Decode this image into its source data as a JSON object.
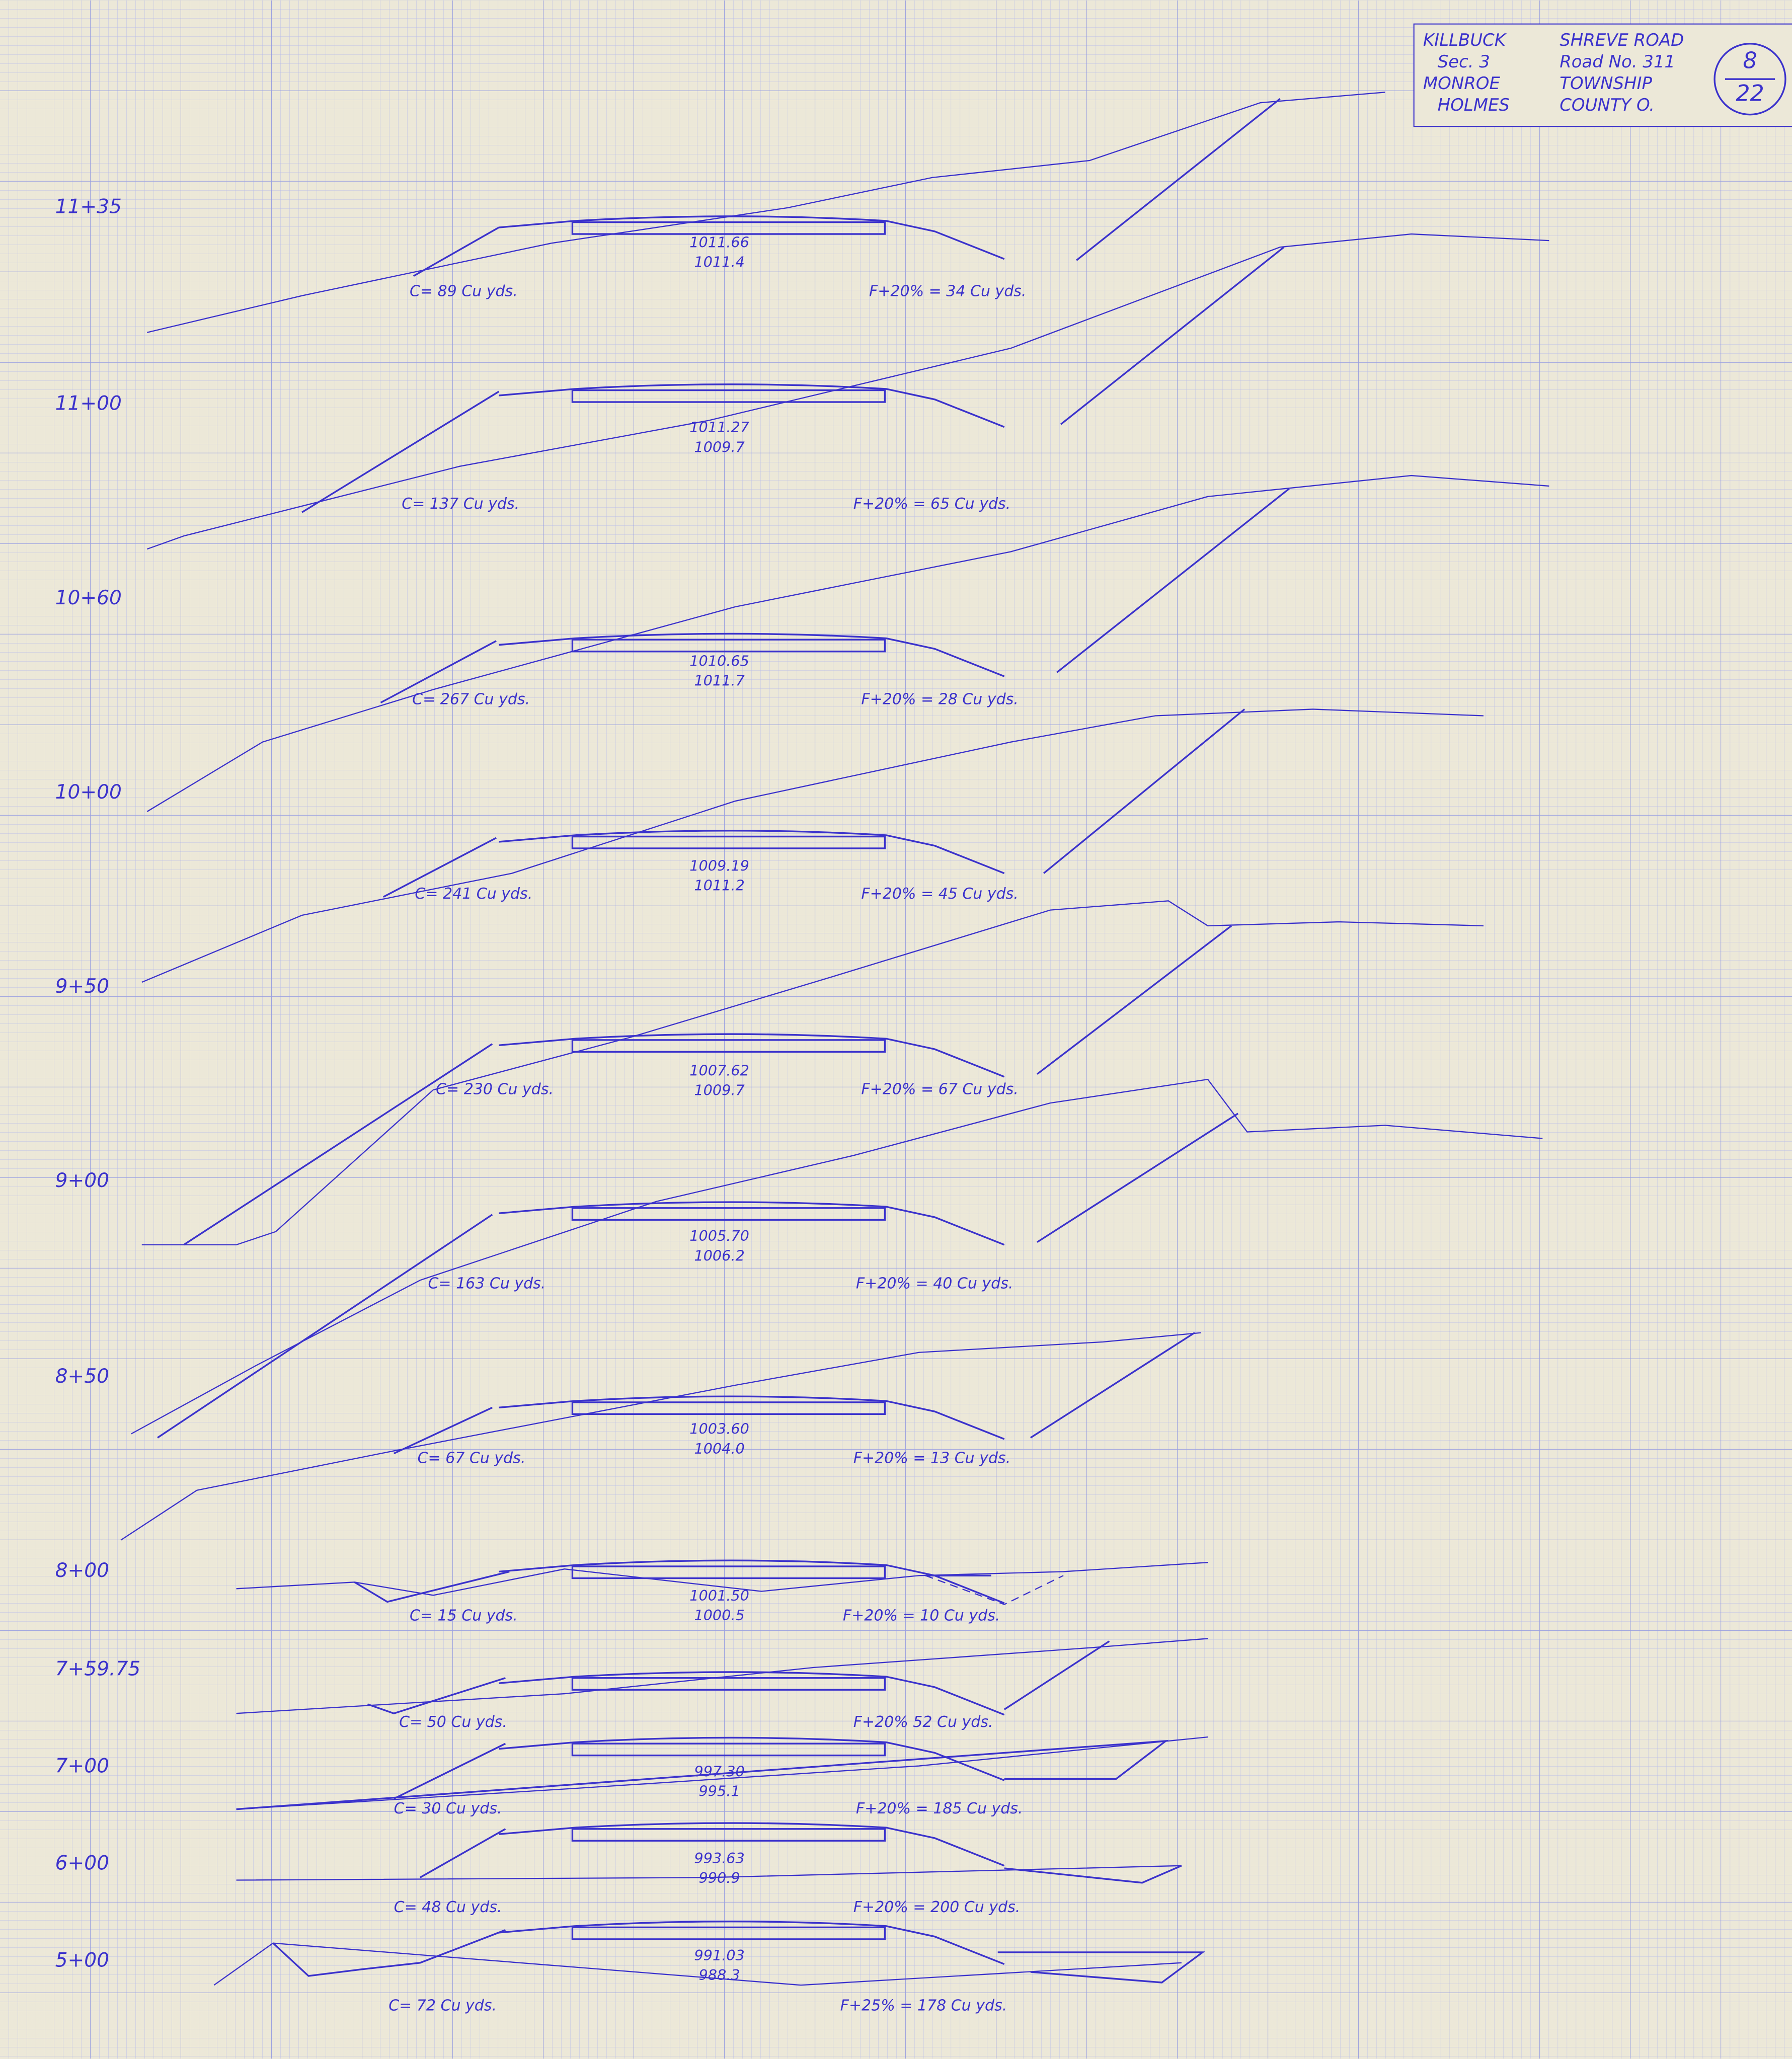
{
  "title_block": {
    "lines": [
      [
        "KILLBUCK",
        "SHREVE ROAD"
      ],
      [
        "Sec. 3",
        "Road No. 311"
      ],
      [
        "MONROE",
        "TOWNSHIP"
      ],
      [
        "HOLMES",
        "COUNTY O."
      ]
    ],
    "sheet": "8",
    "of": "22"
  },
  "sections": [
    {
      "station": "11+35",
      "elevations": [
        "1011.66",
        "1011.4"
      ],
      "cut": "C= 89 Cu yds.",
      "fill": "F+20% = 34 Cu yds."
    },
    {
      "station": "11+00",
      "elevations": [
        "1011.27",
        "1009.7"
      ],
      "cut": "C= 137 Cu yds.",
      "fill": "F+20% = 65 Cu yds."
    },
    {
      "station": "10+60",
      "elevations": [
        "1010.65",
        "1011.7"
      ],
      "cut": "C= 267 Cu yds.",
      "fill": "F+20% = 28 Cu yds."
    },
    {
      "station": "10+00",
      "elevations": [
        "1009.19",
        "1011.2"
      ],
      "cut": "C= 241 Cu yds.",
      "fill": "F+20% = 45 Cu yds."
    },
    {
      "station": "9+50",
      "elevations": [
        "1007.62",
        "1009.7"
      ],
      "cut": "C= 230 Cu yds.",
      "fill": "F+20% = 67 Cu yds."
    },
    {
      "station": "9+00",
      "elevations": [
        "1005.70",
        "1006.2"
      ],
      "cut": "C= 163 Cu yds.",
      "fill": "F+20% = 40 Cu yds."
    },
    {
      "station": "8+50",
      "elevations": [
        "1003.60",
        "1004.0"
      ],
      "cut": "C= 67 Cu yds.",
      "fill": "F+20% = 13 Cu yds."
    },
    {
      "station": "8+00",
      "elevations": [
        "1001.50",
        "1000.5"
      ],
      "cut": "C= 15 Cu yds.",
      "fill": "F+20% = 10 Cu yds."
    },
    {
      "station": "7+59.75",
      "cut": "C= 50 Cu yds.",
      "fill": "F+20% 52 Cu yds."
    },
    {
      "station": "7+00",
      "elevations": [
        "997.30",
        "995.1"
      ],
      "cut": "C= 30 Cu yds.",
      "fill": "F+20% = 185 Cu yds."
    },
    {
      "station": "6+00",
      "elevations": [
        "993.63",
        "990.9"
      ],
      "cut": "C= 48 Cu yds.",
      "fill": "F+20% = 200 Cu yds."
    },
    {
      "station": "5+00",
      "elevations": [
        "991.03",
        "988.3"
      ],
      "cut": "C= 72 Cu yds.",
      "fill": "F+25% = 178 Cu yds."
    }
  ]
}
